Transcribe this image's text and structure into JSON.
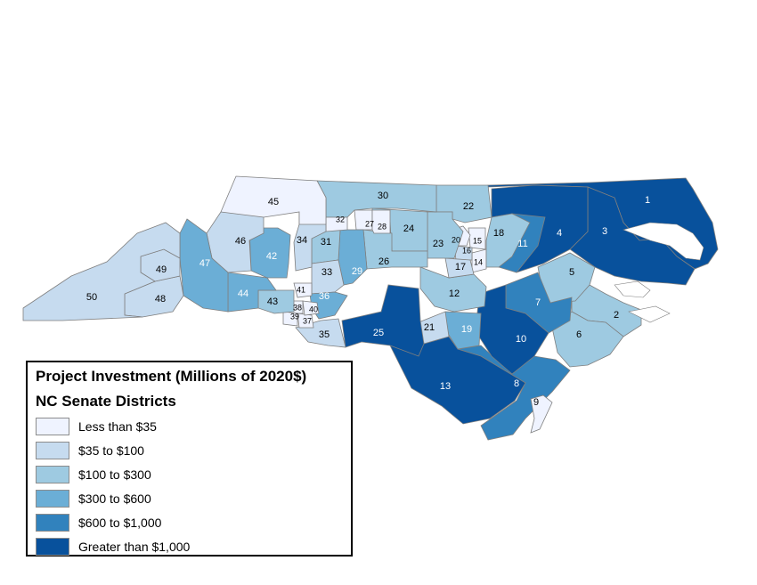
{
  "legend": {
    "title": "Project Investment (Millions of 2020$)",
    "subtitle": "NC Senate Districts",
    "items": [
      {
        "label": "Less than $35",
        "color": "#eff3ff"
      },
      {
        "label": "$35 to $100",
        "color": "#c6dbef"
      },
      {
        "label": "$100 to $300",
        "color": "#9ecae1"
      },
      {
        "label": "$300 to $600",
        "color": "#6baed6"
      },
      {
        "label": "$600 to $1,000",
        "color": "#3182bd"
      },
      {
        "label": "Greater than $1,000",
        "color": "#08519c"
      }
    ]
  },
  "districts": [
    {
      "id": "1",
      "class": 5
    },
    {
      "id": "2",
      "class": 2
    },
    {
      "id": "3",
      "class": 5
    },
    {
      "id": "4",
      "class": 5
    },
    {
      "id": "5",
      "class": 2
    },
    {
      "id": "6",
      "class": 2
    },
    {
      "id": "7",
      "class": 4
    },
    {
      "id": "8",
      "class": 4
    },
    {
      "id": "9",
      "class": 0
    },
    {
      "id": "10",
      "class": 5
    },
    {
      "id": "11",
      "class": 4
    },
    {
      "id": "12",
      "class": 2
    },
    {
      "id": "13",
      "class": 5
    },
    {
      "id": "14",
      "class": 0
    },
    {
      "id": "15",
      "class": 0
    },
    {
      "id": "16",
      "class": 1
    },
    {
      "id": "17",
      "class": 1
    },
    {
      "id": "18",
      "class": 2
    },
    {
      "id": "19",
      "class": 3
    },
    {
      "id": "20",
      "class": 0
    },
    {
      "id": "21",
      "class": 1
    },
    {
      "id": "22",
      "class": 2
    },
    {
      "id": "23",
      "class": 2
    },
    {
      "id": "24",
      "class": 2
    },
    {
      "id": "25",
      "class": 5
    },
    {
      "id": "26",
      "class": 2
    },
    {
      "id": "27",
      "class": 0
    },
    {
      "id": "28",
      "class": 0
    },
    {
      "id": "29",
      "class": 3
    },
    {
      "id": "30",
      "class": 2
    },
    {
      "id": "31",
      "class": 2
    },
    {
      "id": "32",
      "class": 0
    },
    {
      "id": "33",
      "class": 1
    },
    {
      "id": "34",
      "class": 1
    },
    {
      "id": "35",
      "class": 1
    },
    {
      "id": "36",
      "class": 3
    },
    {
      "id": "37",
      "class": 0
    },
    {
      "id": "38",
      "class": 0
    },
    {
      "id": "39",
      "class": 0
    },
    {
      "id": "40",
      "class": 0
    },
    {
      "id": "41",
      "class": 0
    },
    {
      "id": "42",
      "class": 3
    },
    {
      "id": "43",
      "class": 2
    },
    {
      "id": "44",
      "class": 3
    },
    {
      "id": "45",
      "class": 0
    },
    {
      "id": "46",
      "class": 1
    },
    {
      "id": "47",
      "class": 3
    },
    {
      "id": "48",
      "class": 1
    },
    {
      "id": "49",
      "class": 1
    },
    {
      "id": "50",
      "class": 1
    }
  ]
}
